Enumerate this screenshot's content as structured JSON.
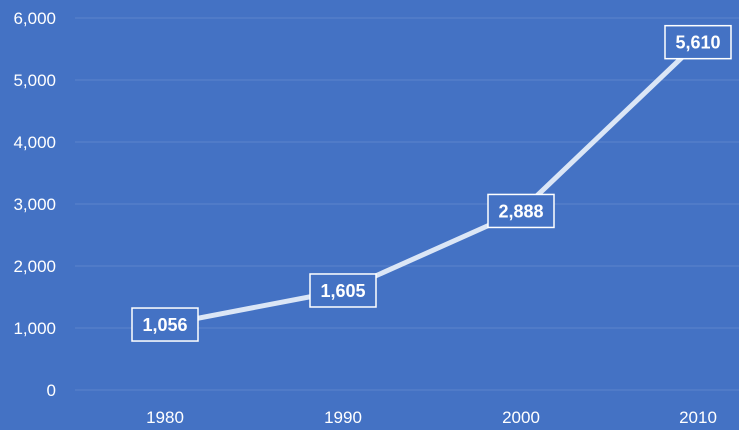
{
  "chart_data": {
    "type": "line",
    "title": "",
    "xlabel": "",
    "ylabel": "",
    "categories": [
      "1980",
      "1990",
      "2000",
      "2010"
    ],
    "series": [
      {
        "values": [
          1056,
          1605,
          2888,
          5610
        ]
      }
    ],
    "data_labels": [
      "1,056",
      "1,605",
      "2,888",
      "5,610"
    ],
    "ylim": [
      0,
      6000
    ],
    "yticks": [
      0,
      1000,
      2000,
      3000,
      4000,
      5000,
      6000
    ],
    "ytick_labels": [
      "0",
      "1,000",
      "2,000",
      "3,000",
      "4,000",
      "5,000",
      "6,000"
    ],
    "grid": true,
    "legend": "none",
    "colors": {
      "background": "#4472c4",
      "line": "#dbe6f6",
      "gridline": "#5b84cc",
      "text": "#ffffff"
    }
  }
}
